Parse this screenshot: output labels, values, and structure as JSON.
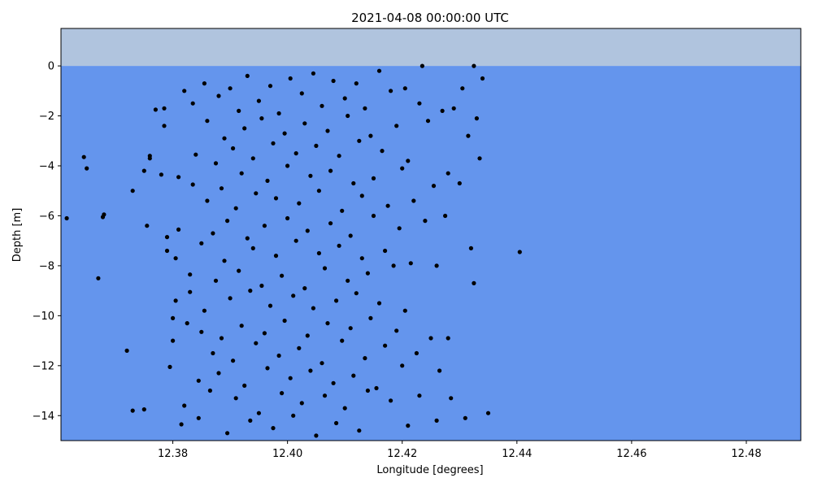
{
  "chart_data": {
    "type": "scatter",
    "title": "2021-04-08 00:00:00 UTC",
    "xlabel": "Longitude [degrees]",
    "ylabel": "Depth [m]",
    "xlim": [
      12.3605,
      12.4895
    ],
    "ylim": [
      -15,
      1.5
    ],
    "xticks": [
      "12.38",
      "12.40",
      "12.42",
      "12.44",
      "12.46",
      "12.48"
    ],
    "xtick_values": [
      12.38,
      12.4,
      12.42,
      12.44,
      12.46,
      12.48
    ],
    "yticks": [
      "0",
      "−2",
      "−4",
      "−6",
      "−8",
      "−10",
      "−12",
      "−14"
    ],
    "ytick_values": [
      0,
      -2,
      -4,
      -6,
      -8,
      -10,
      -12,
      -14
    ],
    "grid": false,
    "background": {
      "air_color": "#b0c4de",
      "water_color": "#6495ed",
      "surface_depth": 0
    },
    "marker_color": "#000000",
    "points": [
      [
        12.3615,
        -6.1
      ],
      [
        12.3645,
        -3.65
      ],
      [
        12.365,
        -4.1
      ],
      [
        12.367,
        -8.5
      ],
      [
        12.3678,
        -6.05
      ],
      [
        12.368,
        -5.95
      ],
      [
        12.372,
        -11.4
      ],
      [
        12.373,
        -5.0
      ],
      [
        12.373,
        -13.8
      ],
      [
        12.375,
        -13.75
      ],
      [
        12.375,
        -4.2
      ],
      [
        12.3755,
        -6.4
      ],
      [
        12.376,
        -3.6
      ],
      [
        12.376,
        -3.7
      ],
      [
        12.377,
        -1.75
      ],
      [
        12.378,
        -4.35
      ],
      [
        12.3785,
        -1.7
      ],
      [
        12.3785,
        -2.4
      ],
      [
        12.379,
        -6.85
      ],
      [
        12.379,
        -7.4
      ],
      [
        12.3795,
        -12.05
      ],
      [
        12.38,
        -10.1
      ],
      [
        12.38,
        -11.0
      ],
      [
        12.3805,
        -7.7
      ],
      [
        12.3805,
        -9.4
      ],
      [
        12.381,
        -6.55
      ],
      [
        12.381,
        -4.45
      ],
      [
        12.3815,
        -14.35
      ],
      [
        12.382,
        -1.0
      ],
      [
        12.382,
        -13.6
      ],
      [
        12.3825,
        -10.3
      ],
      [
        12.383,
        -9.05
      ],
      [
        12.383,
        -8.35
      ],
      [
        12.3835,
        -4.75
      ],
      [
        12.3835,
        -1.5
      ],
      [
        12.384,
        -3.55
      ],
      [
        12.3845,
        -12.6
      ],
      [
        12.3845,
        -14.1
      ],
      [
        12.385,
        -10.65
      ],
      [
        12.385,
        -7.1
      ],
      [
        12.3855,
        -0.7
      ],
      [
        12.3855,
        -9.8
      ],
      [
        12.386,
        -2.2
      ],
      [
        12.386,
        -5.4
      ],
      [
        12.3865,
        -13.0
      ],
      [
        12.387,
        -11.5
      ],
      [
        12.387,
        -6.7
      ],
      [
        12.3875,
        -3.9
      ],
      [
        12.3875,
        -8.6
      ],
      [
        12.388,
        -1.2
      ],
      [
        12.388,
        -12.3
      ],
      [
        12.3885,
        -4.9
      ],
      [
        12.3885,
        -10.9
      ],
      [
        12.389,
        -2.9
      ],
      [
        12.389,
        -7.8
      ],
      [
        12.3895,
        -14.7
      ],
      [
        12.3895,
        -6.2
      ],
      [
        12.39,
        -0.9
      ],
      [
        12.39,
        -9.3
      ],
      [
        12.3905,
        -3.3
      ],
      [
        12.3905,
        -11.8
      ],
      [
        12.391,
        -5.7
      ],
      [
        12.391,
        -13.3
      ],
      [
        12.3915,
        -1.8
      ],
      [
        12.3915,
        -8.2
      ],
      [
        12.392,
        -10.4
      ],
      [
        12.392,
        -4.3
      ],
      [
        12.3925,
        -2.5
      ],
      [
        12.3925,
        -12.8
      ],
      [
        12.393,
        -6.9
      ],
      [
        12.393,
        -0.4
      ],
      [
        12.3935,
        -9.0
      ],
      [
        12.3935,
        -14.2
      ],
      [
        12.394,
        -3.7
      ],
      [
        12.394,
        -7.3
      ],
      [
        12.3945,
        -11.1
      ],
      [
        12.3945,
        -5.1
      ],
      [
        12.395,
        -1.4
      ],
      [
        12.395,
        -13.9
      ],
      [
        12.3955,
        -8.8
      ],
      [
        12.3955,
        -2.1
      ],
      [
        12.396,
        -10.7
      ],
      [
        12.396,
        -6.4
      ],
      [
        12.3965,
        -4.6
      ],
      [
        12.3965,
        -12.1
      ],
      [
        12.397,
        -0.8
      ],
      [
        12.397,
        -9.6
      ],
      [
        12.3975,
        -3.1
      ],
      [
        12.3975,
        -14.5
      ],
      [
        12.398,
        -7.6
      ],
      [
        12.398,
        -5.3
      ],
      [
        12.3985,
        -11.6
      ],
      [
        12.3985,
        -1.9
      ],
      [
        12.399,
        -13.1
      ],
      [
        12.399,
        -8.4
      ],
      [
        12.3995,
        -2.7
      ],
      [
        12.3995,
        -10.2
      ],
      [
        12.4,
        -6.1
      ],
      [
        12.4,
        -4.0
      ],
      [
        12.4005,
        -12.5
      ],
      [
        12.4005,
        -0.5
      ],
      [
        12.401,
        -9.2
      ],
      [
        12.401,
        -14.0
      ],
      [
        12.4015,
        -3.5
      ],
      [
        12.4015,
        -7.0
      ],
      [
        12.402,
        -11.3
      ],
      [
        12.402,
        -5.5
      ],
      [
        12.4025,
        -1.1
      ],
      [
        12.4025,
        -13.5
      ],
      [
        12.403,
        -8.9
      ],
      [
        12.403,
        -2.3
      ],
      [
        12.4035,
        -10.8
      ],
      [
        12.4035,
        -6.6
      ],
      [
        12.404,
        -4.4
      ],
      [
        12.404,
        -12.2
      ],
      [
        12.4045,
        -0.3
      ],
      [
        12.4045,
        -9.7
      ],
      [
        12.405,
        -3.2
      ],
      [
        12.405,
        -14.8
      ],
      [
        12.4055,
        -7.5
      ],
      [
        12.4055,
        -5.0
      ],
      [
        12.406,
        -11.9
      ],
      [
        12.406,
        -1.6
      ],
      [
        12.4065,
        -13.2
      ],
      [
        12.4065,
        -8.1
      ],
      [
        12.407,
        -2.6
      ],
      [
        12.407,
        -10.3
      ],
      [
        12.4075,
        -6.3
      ],
      [
        12.4075,
        -4.2
      ],
      [
        12.408,
        -12.7
      ],
      [
        12.408,
        -0.6
      ],
      [
        12.4085,
        -9.4
      ],
      [
        12.4085,
        -14.3
      ],
      [
        12.409,
        -3.6
      ],
      [
        12.409,
        -7.2
      ],
      [
        12.4095,
        -11.0
      ],
      [
        12.4095,
        -5.8
      ],
      [
        12.41,
        -1.3
      ],
      [
        12.41,
        -13.7
      ],
      [
        12.4105,
        -8.6
      ],
      [
        12.4105,
        -2.0
      ],
      [
        12.411,
        -10.5
      ],
      [
        12.411,
        -6.8
      ],
      [
        12.4115,
        -4.7
      ],
      [
        12.4115,
        -12.4
      ],
      [
        12.412,
        -0.7
      ],
      [
        12.412,
        -9.1
      ],
      [
        12.4125,
        -3.0
      ],
      [
        12.4125,
        -14.6
      ],
      [
        12.413,
        -7.7
      ],
      [
        12.413,
        -5.2
      ],
      [
        12.4135,
        -11.7
      ],
      [
        12.4135,
        -1.7
      ],
      [
        12.414,
        -13.0
      ],
      [
        12.414,
        -8.3
      ],
      [
        12.4145,
        -2.8
      ],
      [
        12.4145,
        -10.1
      ],
      [
        12.415,
        -6.0
      ],
      [
        12.415,
        -4.5
      ],
      [
        12.4155,
        -12.9
      ],
      [
        12.416,
        -0.2
      ],
      [
        12.416,
        -9.5
      ],
      [
        12.4165,
        -3.4
      ],
      [
        12.417,
        -7.4
      ],
      [
        12.417,
        -11.2
      ],
      [
        12.4175,
        -5.6
      ],
      [
        12.418,
        -1.0
      ],
      [
        12.418,
        -13.4
      ],
      [
        12.4185,
        -8.0
      ],
      [
        12.419,
        -2.4
      ],
      [
        12.419,
        -10.6
      ],
      [
        12.4195,
        -6.5
      ],
      [
        12.42,
        -4.1
      ],
      [
        12.42,
        -12.0
      ],
      [
        12.4205,
        -0.9
      ],
      [
        12.4205,
        -9.8
      ],
      [
        12.421,
        -3.8
      ],
      [
        12.421,
        -14.4
      ],
      [
        12.4215,
        -7.9
      ],
      [
        12.422,
        -5.4
      ],
      [
        12.4225,
        -11.5
      ],
      [
        12.423,
        -1.5
      ],
      [
        12.423,
        -13.2
      ],
      [
        12.4235,
        -0.0
      ],
      [
        12.424,
        -6.2
      ],
      [
        12.4245,
        -2.2
      ],
      [
        12.425,
        -10.9
      ],
      [
        12.4255,
        -4.8
      ],
      [
        12.426,
        -8.0
      ],
      [
        12.426,
        -14.2
      ],
      [
        12.4265,
        -12.2
      ],
      [
        12.427,
        -1.8
      ],
      [
        12.4275,
        -6.0
      ],
      [
        12.428,
        -4.3
      ],
      [
        12.428,
        -10.9
      ],
      [
        12.4285,
        -13.3
      ],
      [
        12.429,
        -1.7
      ],
      [
        12.43,
        -4.7
      ],
      [
        12.4305,
        -0.9
      ],
      [
        12.431,
        -14.1
      ],
      [
        12.4315,
        -2.8
      ],
      [
        12.432,
        -7.3
      ],
      [
        12.4325,
        -8.7
      ],
      [
        12.4325,
        -0.0
      ],
      [
        12.433,
        -2.1
      ],
      [
        12.4335,
        -3.7
      ],
      [
        12.434,
        -0.5
      ],
      [
        12.435,
        -13.9
      ],
      [
        12.4405,
        -7.45
      ]
    ]
  }
}
